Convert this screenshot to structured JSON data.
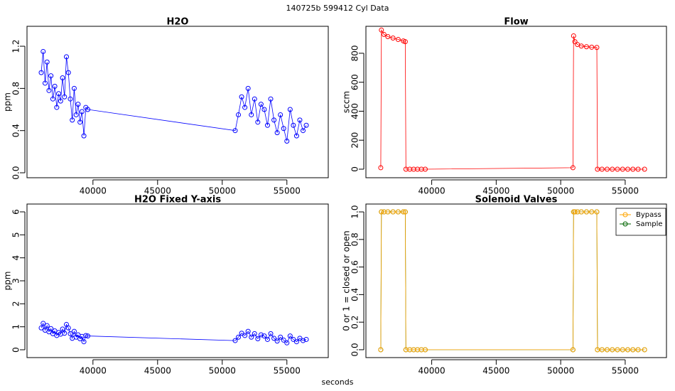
{
  "title": "140725b    599412    Cyl Data",
  "x_label": "seconds",
  "chart_data": [
    {
      "type": "line",
      "title": "H2O",
      "y_label": "ppm",
      "color": "#0000ff",
      "markers": true,
      "xlim": [
        34900,
        58200
      ],
      "ylim": [
        -0.047,
        1.389
      ],
      "xticks": [
        40000,
        45000,
        50000,
        55000
      ],
      "yticks": [
        {
          "value": 0,
          "label": "0.0"
        },
        0.4,
        0.8,
        1.2
      ],
      "x": [
        36000,
        36150,
        36300,
        36450,
        36600,
        36750,
        36900,
        37050,
        37200,
        37350,
        37500,
        37650,
        37800,
        37950,
        38100,
        38250,
        38400,
        38550,
        38700,
        38850,
        39000,
        39150,
        39300,
        39450,
        39600,
        51000,
        51250,
        51500,
        51750,
        52000,
        52250,
        52500,
        52750,
        53000,
        53250,
        53500,
        53750,
        54000,
        54250,
        54500,
        54750,
        55000,
        55250,
        55500,
        55750,
        56000,
        56250,
        56500
      ],
      "values": [
        0.95,
        1.15,
        0.85,
        1.05,
        0.78,
        0.92,
        0.7,
        0.82,
        0.62,
        0.75,
        0.68,
        0.9,
        0.72,
        1.1,
        0.95,
        0.7,
        0.5,
        0.8,
        0.55,
        0.65,
        0.48,
        0.58,
        0.35,
        0.62,
        0.6,
        0.4,
        0.55,
        0.72,
        0.62,
        0.8,
        0.55,
        0.7,
        0.48,
        0.65,
        0.6,
        0.45,
        0.7,
        0.5,
        0.38,
        0.55,
        0.42,
        0.3,
        0.6,
        0.45,
        0.35,
        0.5,
        0.4,
        0.45
      ]
    },
    {
      "type": "line",
      "title": "Flow",
      "y_label": "sccm",
      "color": "#ff0000",
      "markers": true,
      "xlim": [
        34900,
        58200
      ],
      "ylim": [
        -59,
        986
      ],
      "xticks": [
        40000,
        45000,
        50000,
        55000
      ],
      "yticks": [
        0,
        200,
        400,
        600,
        800
      ],
      "x": [
        36050,
        36100,
        36300,
        36600,
        37000,
        37400,
        37800,
        37950,
        38000,
        38300,
        38600,
        38900,
        39200,
        39500,
        50950,
        51000,
        51100,
        51300,
        51600,
        52000,
        52400,
        52800,
        52850,
        53200,
        53600,
        54000,
        54400,
        54800,
        55200,
        55600,
        56000,
        56500
      ],
      "values": [
        10,
        960,
        930,
        915,
        905,
        895,
        885,
        880,
        0,
        0,
        0,
        0,
        0,
        0,
        10,
        920,
        880,
        860,
        850,
        845,
        842,
        840,
        0,
        0,
        0,
        0,
        0,
        0,
        0,
        0,
        0,
        0
      ]
    },
    {
      "type": "line",
      "title": "H2O Fixed Y-axis",
      "y_label": "ppm",
      "color": "#0000ff",
      "markers": true,
      "xlim": [
        34900,
        58200
      ],
      "ylim": [
        -0.34,
        6.34
      ],
      "xticks": [
        40000,
        45000,
        50000,
        55000
      ],
      "yticks": [
        0,
        1,
        2,
        3,
        4,
        5,
        6
      ],
      "x": [
        36000,
        36150,
        36300,
        36450,
        36600,
        36750,
        36900,
        37050,
        37200,
        37350,
        37500,
        37650,
        37800,
        37950,
        38100,
        38250,
        38400,
        38550,
        38700,
        38850,
        39000,
        39150,
        39300,
        39450,
        39600,
        51000,
        51250,
        51500,
        51750,
        52000,
        52250,
        52500,
        52750,
        53000,
        53250,
        53500,
        53750,
        54000,
        54250,
        54500,
        54750,
        55000,
        55250,
        55500,
        55750,
        56000,
        56250,
        56500
      ],
      "values": [
        0.95,
        1.15,
        0.85,
        1.05,
        0.78,
        0.92,
        0.7,
        0.82,
        0.62,
        0.75,
        0.68,
        0.9,
        0.72,
        1.1,
        0.95,
        0.7,
        0.5,
        0.8,
        0.55,
        0.65,
        0.48,
        0.58,
        0.35,
        0.62,
        0.6,
        0.4,
        0.55,
        0.72,
        0.62,
        0.8,
        0.55,
        0.7,
        0.48,
        0.65,
        0.6,
        0.45,
        0.7,
        0.5,
        0.38,
        0.55,
        0.42,
        0.3,
        0.6,
        0.45,
        0.35,
        0.5,
        0.4,
        0.45
      ]
    },
    {
      "type": "line",
      "title": "Solenoid Valves",
      "y_label": "0 or 1 = closed or open",
      "markers": true,
      "legend": "topright",
      "xlim": [
        34900,
        58200
      ],
      "ylim": [
        -0.057,
        1.057
      ],
      "xticks": [
        40000,
        45000,
        50000,
        55000
      ],
      "yticks": [
        {
          "value": 0,
          "label": "0.0"
        },
        0.2,
        0.4,
        0.6,
        0.8,
        {
          "value": 1,
          "label": "1.0"
        }
      ],
      "x": [
        36050,
        36100,
        36300,
        36600,
        37000,
        37400,
        37800,
        37950,
        38000,
        38300,
        38600,
        38900,
        39200,
        39500,
        50950,
        51000,
        51100,
        51300,
        51600,
        52000,
        52400,
        52800,
        52850,
        53200,
        53600,
        54000,
        54400,
        54800,
        55200,
        55600,
        56000,
        56500
      ],
      "series": [
        {
          "name": "Bypass",
          "color": "#ffa500",
          "values": [
            0,
            1,
            1,
            1,
            1,
            1,
            1,
            1,
            0,
            0,
            0,
            0,
            0,
            0,
            0,
            1,
            1,
            1,
            1,
            1,
            1,
            1,
            0,
            0,
            0,
            0,
            0,
            0,
            0,
            0,
            0,
            0
          ]
        },
        {
          "name": "Sample",
          "color": "#006400",
          "values": [
            0,
            1,
            1,
            1,
            1,
            1,
            1,
            1,
            0,
            0,
            0,
            0,
            0,
            0,
            0,
            1,
            1,
            1,
            1,
            1,
            1,
            1,
            0,
            0,
            0,
            0,
            0,
            0,
            0,
            0,
            0,
            0
          ]
        }
      ]
    }
  ]
}
